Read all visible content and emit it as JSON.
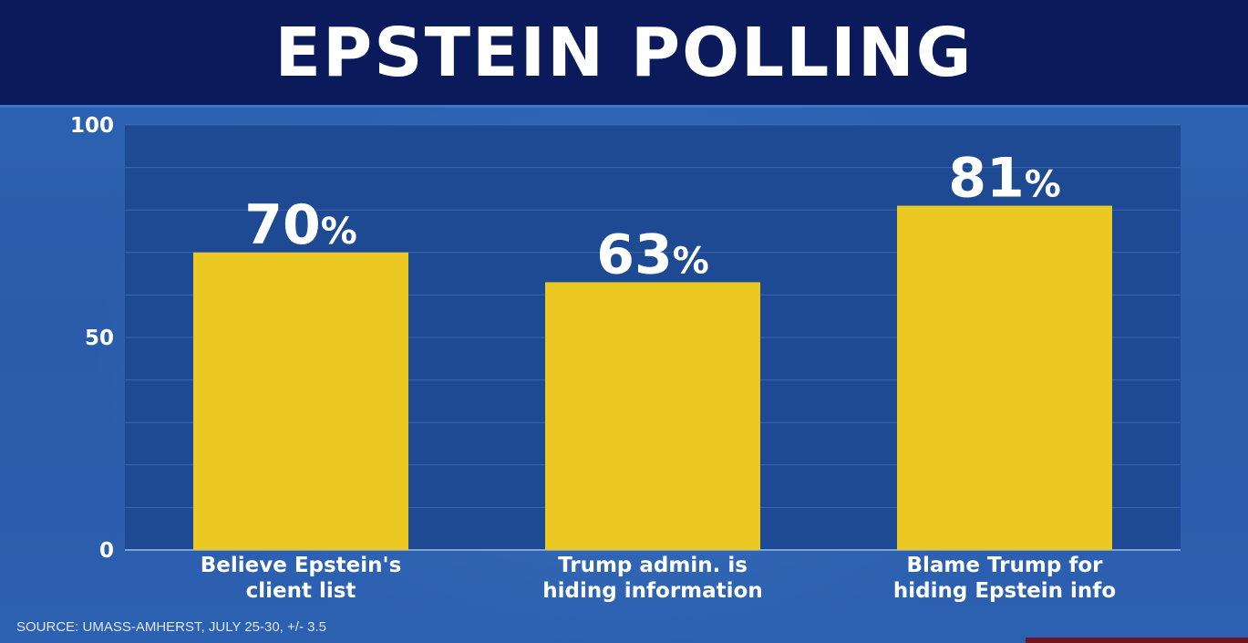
{
  "header": {
    "title": "EPSTEIN POLLING"
  },
  "source": "SOURCE: UMASS-AMHERST, JULY 25-30, +/- 3.5",
  "colors": {
    "header_bg": "#0b1a5a",
    "bar": "#ecc922",
    "plot_bg": "#1d4a93",
    "background": "#2a5cab"
  },
  "chart_data": {
    "type": "bar",
    "title": "EPSTEIN POLLING",
    "categories": [
      [
        "Believe Epstein's",
        "client list"
      ],
      [
        "Trump admin. is",
        "hiding information"
      ],
      [
        "Blame Trump for",
        "hiding Epstein info"
      ]
    ],
    "values": [
      70,
      63,
      81
    ],
    "value_labels": [
      "70%",
      "63%",
      "81%"
    ],
    "ylim": [
      0,
      100
    ],
    "yticks": [
      0,
      50,
      100
    ],
    "grid": true,
    "xlabel": "",
    "ylabel": ""
  }
}
